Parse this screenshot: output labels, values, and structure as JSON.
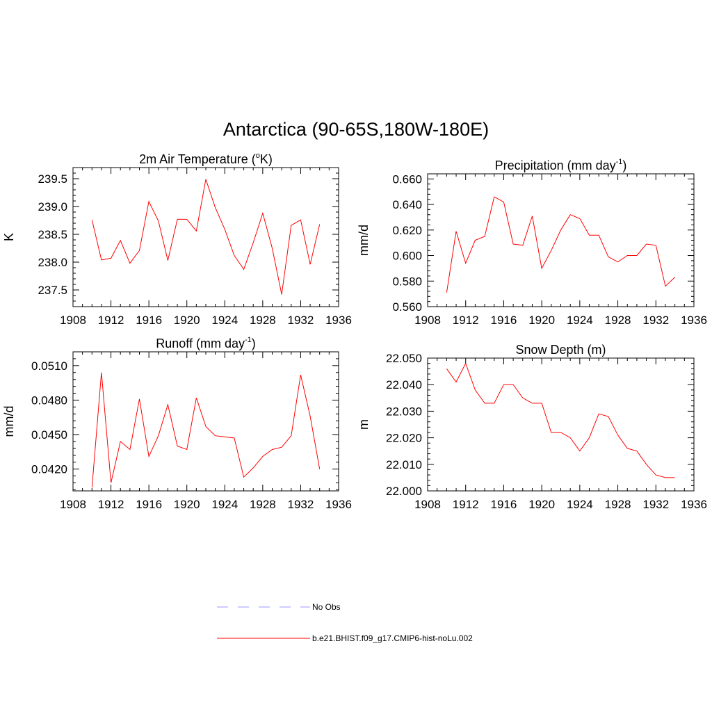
{
  "figure": {
    "title": "Antarctica (90-65S,180W-180E)"
  },
  "colors": {
    "series": "#ff0000",
    "obs": "#9999ff",
    "axis": "#000000"
  },
  "chart_data": [
    {
      "type": "line",
      "title": "2m Air Temperature (°K)",
      "title_main": "2m Air Temperature (",
      "title_sup": "o",
      "title_tail": "K)",
      "ylabel": "K",
      "xlim": [
        1908,
        1936
      ],
      "ylim": [
        237.2,
        239.7
      ],
      "xticks": [
        1908,
        1912,
        1916,
        1920,
        1924,
        1928,
        1932,
        1936
      ],
      "yticks": [
        237.5,
        238.0,
        238.5,
        239.0,
        239.5
      ],
      "yticklabels": [
        "237.5",
        "238.0",
        "238.5",
        "239.0",
        "239.5"
      ],
      "series": [
        {
          "x": [
            1910,
            1911,
            1912,
            1913,
            1914,
            1915,
            1916,
            1917,
            1918,
            1919,
            1920,
            1921,
            1922,
            1923,
            1924,
            1925,
            1926,
            1927,
            1928,
            1929,
            1930,
            1931,
            1932,
            1933,
            1934
          ],
          "values": [
            238.76,
            238.04,
            238.07,
            238.39,
            237.98,
            238.21,
            239.09,
            238.74,
            238.03,
            238.77,
            238.77,
            238.56,
            239.49,
            238.98,
            238.59,
            238.12,
            237.87,
            238.35,
            238.88,
            238.25,
            237.42,
            238.66,
            238.76,
            237.96,
            238.68
          ]
        }
      ]
    },
    {
      "type": "line",
      "title": "Precipitation (mm day-1)",
      "title_main": "Precipitation (mm day",
      "title_sup": "-1",
      "title_tail": ")",
      "ylabel": "mm/d",
      "xlim": [
        1908,
        1936
      ],
      "ylim": [
        0.56,
        0.664
      ],
      "xticks": [
        1908,
        1912,
        1916,
        1920,
        1924,
        1928,
        1932,
        1936
      ],
      "yticks": [
        0.56,
        0.58,
        0.6,
        0.62,
        0.64,
        0.66
      ],
      "yticklabels": [
        "0.560",
        "0.580",
        "0.600",
        "0.620",
        "0.640",
        "0.660"
      ],
      "series": [
        {
          "x": [
            1910,
            1911,
            1912,
            1913,
            1914,
            1915,
            1916,
            1917,
            1918,
            1919,
            1920,
            1921,
            1922,
            1923,
            1924,
            1925,
            1926,
            1927,
            1928,
            1929,
            1930,
            1931,
            1932,
            1933,
            1934
          ],
          "values": [
            0.571,
            0.619,
            0.594,
            0.612,
            0.615,
            0.646,
            0.642,
            0.609,
            0.608,
            0.631,
            0.59,
            0.604,
            0.62,
            0.632,
            0.629,
            0.616,
            0.616,
            0.599,
            0.595,
            0.6,
            0.6,
            0.609,
            0.608,
            0.576,
            0.583
          ]
        }
      ]
    },
    {
      "type": "line",
      "title": "Runoff (mm day-1)",
      "title_main": "Runoff (mm day",
      "title_sup": "-1",
      "title_tail": ")",
      "ylabel": "mm/d",
      "xlim": [
        1908,
        1936
      ],
      "ylim": [
        0.0401,
        0.0522
      ],
      "xticks": [
        1908,
        1912,
        1916,
        1920,
        1924,
        1928,
        1932,
        1936
      ],
      "yticks": [
        0.042,
        0.045,
        0.048,
        0.051
      ],
      "yticklabels": [
        "0.0420",
        "0.0450",
        "0.0480",
        "0.0510"
      ],
      "series": [
        {
          "x": [
            1910,
            1911,
            1912,
            1913,
            1914,
            1915,
            1916,
            1917,
            1918,
            1919,
            1920,
            1921,
            1922,
            1923,
            1924,
            1925,
            1926,
            1927,
            1928,
            1929,
            1930,
            1931,
            1932,
            1933,
            1934
          ],
          "values": [
            0.0404,
            0.0504,
            0.0408,
            0.0444,
            0.0437,
            0.0481,
            0.0431,
            0.0449,
            0.0476,
            0.044,
            0.0437,
            0.0482,
            0.0457,
            0.0449,
            0.0448,
            0.0447,
            0.0413,
            0.0421,
            0.0431,
            0.0437,
            0.0439,
            0.0449,
            0.0502,
            0.0466,
            0.042
          ]
        }
      ]
    },
    {
      "type": "line",
      "title": "Snow Depth (m)",
      "title_main": "Snow Depth (m)",
      "title_sup": "",
      "title_tail": "",
      "ylabel": "m",
      "xlim": [
        1908,
        1936
      ],
      "ylim": [
        22.0,
        22.05
      ],
      "xticks": [
        1908,
        1912,
        1916,
        1920,
        1924,
        1928,
        1932,
        1936
      ],
      "yticks": [
        22.0,
        22.01,
        22.02,
        22.03,
        22.04,
        22.05
      ],
      "yticklabels": [
        "22.000",
        "22.010",
        "22.020",
        "22.030",
        "22.040",
        "22.050"
      ],
      "series": [
        {
          "x": [
            1910,
            1911,
            1912,
            1913,
            1914,
            1915,
            1916,
            1917,
            1918,
            1919,
            1920,
            1921,
            1922,
            1923,
            1924,
            1925,
            1926,
            1927,
            1928,
            1929,
            1930,
            1931,
            1932,
            1933,
            1934
          ],
          "values": [
            22.046,
            22.041,
            22.048,
            22.038,
            22.033,
            22.033,
            22.04,
            22.04,
            22.035,
            22.033,
            22.033,
            22.022,
            22.022,
            22.02,
            22.015,
            22.02,
            22.029,
            22.028,
            22.021,
            22.016,
            22.015,
            22.01,
            22.006,
            22.005,
            22.005
          ]
        }
      ]
    }
  ],
  "legend": {
    "items": [
      {
        "label": "No Obs",
        "style": "dashed"
      },
      {
        "label": "b.e21.BHIST.f09_g17.CMIP6-hist-noLu.002",
        "style": "solid"
      }
    ]
  }
}
